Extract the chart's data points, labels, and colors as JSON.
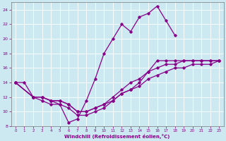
{
  "xlabel": "Windchill (Refroidissement éolien,°C)",
  "bg_color": "#cce8f0",
  "line_color": "#880088",
  "grid_color": "#ffffff",
  "xlim": [
    -0.5,
    23.5
  ],
  "ylim": [
    8,
    25
  ],
  "xticks": [
    0,
    1,
    2,
    3,
    4,
    5,
    6,
    7,
    8,
    9,
    10,
    11,
    12,
    13,
    14,
    15,
    16,
    17,
    18,
    19,
    20,
    21,
    22,
    23
  ],
  "yticks": [
    8,
    10,
    12,
    14,
    16,
    18,
    20,
    22,
    24
  ],
  "line1_x": [
    0,
    1,
    2,
    3,
    4,
    5,
    6,
    7,
    8,
    9,
    10,
    11,
    12,
    13,
    14,
    15,
    16,
    17,
    18
  ],
  "line1_y": [
    14,
    14,
    12,
    11.5,
    11,
    11,
    8.5,
    9,
    11.5,
    14.5,
    18,
    20,
    22,
    21,
    23,
    23.5,
    24.5,
    22.5,
    20.5
  ],
  "line2_x": [
    0,
    2,
    3,
    4,
    5,
    6,
    7,
    8,
    9,
    10,
    11,
    12,
    13,
    14,
    15,
    16,
    17,
    18,
    19,
    20,
    21,
    22,
    23
  ],
  "line2_y": [
    14,
    12,
    12,
    11.5,
    11,
    10.5,
    9.5,
    9.5,
    10,
    10.5,
    11.5,
    12.5,
    13,
    14,
    15.5,
    17,
    17,
    17,
    17,
    17,
    17,
    17,
    17
  ],
  "line3_x": [
    0,
    2,
    3,
    4,
    5,
    6,
    7,
    8,
    9,
    10,
    11,
    12,
    13,
    14,
    15,
    16,
    17,
    18,
    19,
    20,
    21,
    22,
    23
  ],
  "line3_y": [
    14,
    12,
    12,
    11.5,
    11.5,
    11,
    10,
    10,
    10.5,
    11,
    12,
    13,
    14,
    14.5,
    15.5,
    16,
    16.5,
    16.5,
    17,
    17,
    17,
    17,
    17
  ],
  "line4_x": [
    0,
    2,
    3,
    4,
    5,
    6,
    7,
    8,
    9,
    10,
    11,
    12,
    13,
    14,
    15,
    16,
    17,
    18,
    19,
    20,
    21,
    22,
    23
  ],
  "line4_y": [
    14,
    12,
    12,
    11.5,
    11.5,
    11,
    10,
    10,
    10.5,
    11,
    11.5,
    12.5,
    13,
    13.5,
    14.5,
    15,
    15.5,
    16,
    16,
    16.5,
    16.5,
    16.5,
    17
  ]
}
